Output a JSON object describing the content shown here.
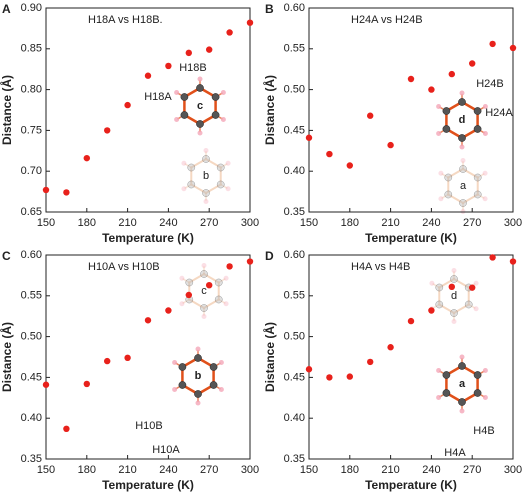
{
  "chart_data": [
    {
      "type": "scatter",
      "panel": "A",
      "title": "H18A vs H18B.",
      "xlabel": "Temperature (K)",
      "ylabel": "Distance (Å)",
      "color": "#e8211b",
      "x": [
        150,
        165,
        180,
        195,
        210,
        225,
        240,
        255,
        270,
        285,
        300
      ],
      "values": [
        0.677,
        0.674,
        0.716,
        0.75,
        0.781,
        0.817,
        0.829,
        0.845,
        0.849,
        0.87,
        0.882
      ],
      "xlim": [
        150,
        300
      ],
      "xticks": [
        150,
        180,
        210,
        240,
        270,
        300
      ],
      "ylim": [
        0.65,
        0.9
      ],
      "yticks": [
        {
          "value": 0.65,
          "label": "0.65"
        },
        {
          "value": 0.7,
          "label": "0.70"
        },
        {
          "value": 0.75,
          "label": "0.75"
        },
        {
          "value": 0.8,
          "label": "0.80"
        },
        {
          "value": 0.85,
          "label": "0.85"
        },
        {
          "value": 0.9,
          "label": "0.90"
        }
      ],
      "annotations": [
        "c",
        "H18B",
        "H18A",
        "b"
      ]
    },
    {
      "type": "scatter",
      "panel": "B",
      "title": "H24A vs H24B",
      "xlabel": "Temperature (K)",
      "ylabel": "Distance (Å)",
      "color": "#e8211b",
      "x": [
        150,
        165,
        180,
        195,
        210,
        225,
        240,
        255,
        270,
        285,
        300
      ],
      "values": [
        0.441,
        0.421,
        0.407,
        0.468,
        0.432,
        0.513,
        0.5,
        0.519,
        0.532,
        0.556,
        0.551
      ],
      "xlim": [
        150,
        300
      ],
      "xticks": [
        150,
        180,
        210,
        240,
        270,
        300
      ],
      "ylim": [
        0.35,
        0.6
      ],
      "yticks": [
        0.35,
        {
          "value": 0.4,
          "label": "0.40"
        },
        0.45,
        {
          "value": 0.5,
          "label": "0.50"
        },
        0.55,
        {
          "value": 0.6,
          "label": "0.60"
        }
      ],
      "annotations": [
        "d",
        "H24B",
        "H24A",
        "a"
      ]
    },
    {
      "type": "scatter",
      "panel": "C",
      "title": "H10A vs H10B",
      "xlabel": "Temperature (K)",
      "ylabel": "Distance (Å)",
      "color": "#e8211b",
      "x": [
        150,
        165,
        180,
        195,
        210,
        225,
        240,
        255,
        270,
        285,
        300
      ],
      "values": [
        0.441,
        0.387,
        0.442,
        0.47,
        0.474,
        0.52,
        0.532,
        0.551,
        0.563,
        0.586,
        0.592
      ],
      "xlim": [
        150,
        300
      ],
      "xticks": [
        150,
        180,
        210,
        240,
        270,
        300
      ],
      "ylim": [
        0.35,
        0.6
      ],
      "yticks": [
        0.35,
        {
          "value": 0.4,
          "label": "0.40"
        },
        0.45,
        {
          "value": 0.5,
          "label": "0.50"
        },
        0.55,
        {
          "value": 0.6,
          "label": "0.60"
        }
      ],
      "annotations": [
        "b",
        "H10B",
        "H10A",
        "c"
      ]
    },
    {
      "type": "scatter",
      "panel": "D",
      "title": "H4A vs H4B",
      "xlabel": "Temperature (K)",
      "ylabel": "Distance (Å)",
      "color": "#e8211b",
      "x": [
        150,
        165,
        180,
        195,
        210,
        225,
        240,
        255,
        270,
        285,
        300
      ],
      "values": [
        0.46,
        0.45,
        0.451,
        0.469,
        0.487,
        0.519,
        0.532,
        0.561,
        0.56,
        0.597,
        0.592
      ],
      "xlim": [
        150,
        300
      ],
      "xticks": [
        150,
        180,
        210,
        240,
        270,
        300
      ],
      "ylim": [
        0.35,
        0.6
      ],
      "yticks": [
        0.35,
        {
          "value": 0.4,
          "label": "0.40"
        },
        0.45,
        {
          "value": 0.5,
          "label": "0.50"
        },
        0.55,
        {
          "value": 0.6,
          "label": "0.60"
        }
      ],
      "annotations": [
        "a",
        "H4B",
        "H4A",
        "d"
      ]
    }
  ]
}
